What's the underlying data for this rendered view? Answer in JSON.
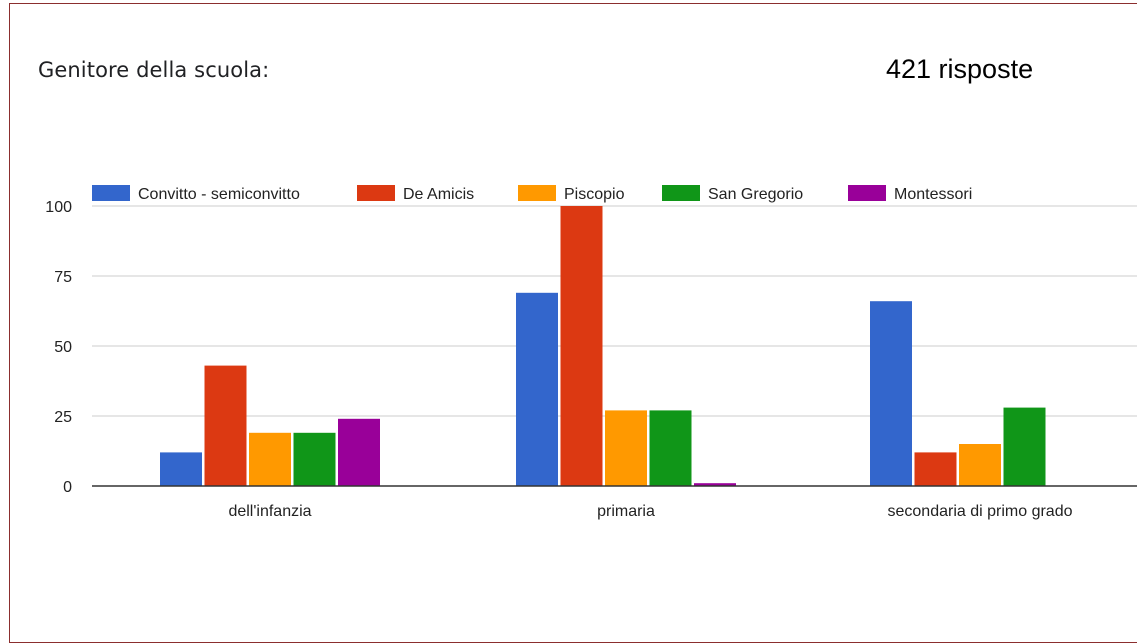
{
  "question": {
    "title": "Genitore della scuola:",
    "responses_label": "421 risposte"
  },
  "chart_data": {
    "type": "bar",
    "categories": [
      "dell'infanzia",
      "primaria",
      "secondaria di primo grado"
    ],
    "series": [
      {
        "name": "Convitto - semiconvitto",
        "color": "#3366cc",
        "values": [
          12,
          69,
          66
        ]
      },
      {
        "name": "De Amicis",
        "color": "#dc3912",
        "values": [
          43,
          100,
          12
        ]
      },
      {
        "name": "Piscopio",
        "color": "#ff9900",
        "values": [
          19,
          27,
          15
        ]
      },
      {
        "name": "San Gregorio",
        "color": "#109618",
        "values": [
          19,
          27,
          28
        ]
      },
      {
        "name": "Montessori",
        "color": "#990099",
        "values": [
          24,
          1,
          0
        ]
      }
    ],
    "ylim": [
      0,
      100
    ],
    "yticks": [
      0,
      25,
      50,
      75,
      100
    ],
    "grid": true,
    "legend": "top"
  }
}
